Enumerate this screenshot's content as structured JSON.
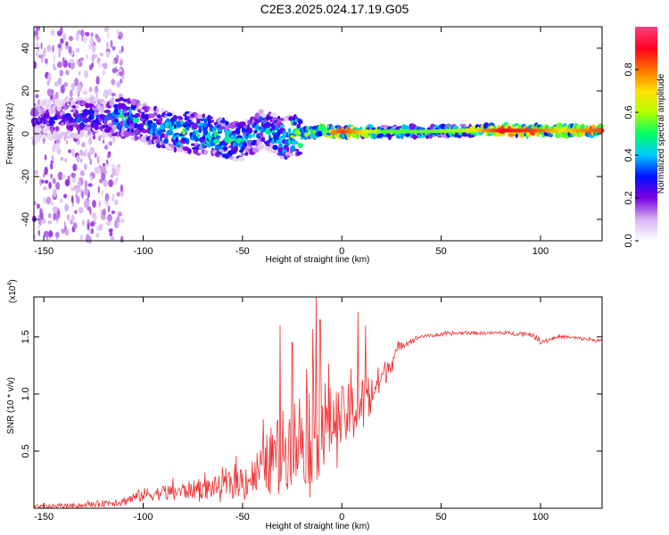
{
  "title": "C2E3.2025.024.17.19.G05",
  "spectrogram": {
    "type": "heatmap",
    "xlabel": "Height of straight line (km)",
    "ylabel": "Frequency (Hz)",
    "xlim": [
      -155,
      131
    ],
    "ylim": [
      -50,
      50
    ],
    "xticks": [
      -150,
      -100,
      -50,
      0,
      50,
      100
    ],
    "yticks": [
      -40,
      -20,
      0,
      20,
      40
    ],
    "colorbar": {
      "label": "Normalized spectral amplitude",
      "range": [
        0,
        1
      ],
      "ticks": [
        0.0,
        0.2,
        0.4,
        0.6,
        0.8
      ],
      "tick_labels": [
        "0.0",
        "0.2",
        "0.4",
        "0.6",
        "0.8"
      ],
      "colors": [
        "#ffffff",
        "#d7b3f0",
        "#7b00e0",
        "#0010ff",
        "#00c8ff",
        "#00ff64",
        "#b4ff00",
        "#ffe000",
        "#ff7000",
        "#ff0020",
        "#ff4080"
      ]
    },
    "ridge": [
      {
        "x": -155,
        "f": 6,
        "amp": 0.25
      },
      {
        "x": -140,
        "f": 7,
        "amp": 0.3
      },
      {
        "x": -130,
        "f": 8,
        "amp": 0.35
      },
      {
        "x": -120,
        "f": 7,
        "amp": 0.3
      },
      {
        "x": -110,
        "f": 8,
        "amp": 0.45
      },
      {
        "x": -100,
        "f": 5,
        "amp": 0.4
      },
      {
        "x": -90,
        "f": 2,
        "amp": 0.45
      },
      {
        "x": -80,
        "f": 1,
        "amp": 0.5
      },
      {
        "x": -70,
        "f": 0,
        "amp": 0.5
      },
      {
        "x": -60,
        "f": -2,
        "amp": 0.5
      },
      {
        "x": -50,
        "f": -4,
        "amp": 0.45
      },
      {
        "x": -40,
        "f": 3,
        "amp": 0.4
      },
      {
        "x": -30,
        "f": -2,
        "amp": 0.5
      },
      {
        "x": -20,
        "f": 0,
        "amp": 0.6
      },
      {
        "x": -10,
        "f": 1,
        "amp": 0.7
      },
      {
        "x": 0,
        "f": 1,
        "amp": 0.85
      },
      {
        "x": 10,
        "f": 1,
        "amp": 0.7
      },
      {
        "x": 20,
        "f": 1,
        "amp": 0.55
      },
      {
        "x": 40,
        "f": 1,
        "amp": 0.55
      },
      {
        "x": 60,
        "f": 1.5,
        "amp": 0.6
      },
      {
        "x": 80,
        "f": 1.5,
        "amp": 0.9
      },
      {
        "x": 95,
        "f": 1.5,
        "amp": 0.85
      },
      {
        "x": 110,
        "f": 1.5,
        "amp": 0.7
      },
      {
        "x": 131,
        "f": 1.5,
        "amp": 0.85
      }
    ]
  },
  "snr": {
    "type": "line",
    "xlabel": "Height of straight line (km)",
    "ylabel": "SNR (10 * v/v)",
    "multiplier": "(x10",
    "multiplier_exp": "4",
    "multiplier_close": ")",
    "xlim": [
      -155,
      131
    ],
    "ylim": [
      0,
      1.85
    ],
    "xticks": [
      -150,
      -100,
      -50,
      0,
      50,
      100
    ],
    "yticks": [
      0.5,
      1.0,
      1.5
    ],
    "ytick_labels": [
      "0.5",
      "1.0",
      "1.5"
    ],
    "color": "#f03030",
    "envelope": [
      {
        "x": -155,
        "base": 0.01,
        "spread": 0.03
      },
      {
        "x": -130,
        "base": 0.02,
        "spread": 0.04
      },
      {
        "x": -110,
        "base": 0.05,
        "spread": 0.08
      },
      {
        "x": -100,
        "base": 0.1,
        "spread": 0.12
      },
      {
        "x": -80,
        "base": 0.13,
        "spread": 0.15
      },
      {
        "x": -60,
        "base": 0.16,
        "spread": 0.2
      },
      {
        "x": -45,
        "base": 0.22,
        "spread": 0.35
      },
      {
        "x": -35,
        "base": 0.35,
        "spread": 0.6
      },
      {
        "x": -25,
        "base": 0.45,
        "spread": 0.8
      },
      {
        "x": -15,
        "base": 0.55,
        "spread": 1.0
      },
      {
        "x": -10,
        "base": 0.6,
        "spread": 0.9
      },
      {
        "x": -5,
        "base": 0.65,
        "spread": 0.6
      },
      {
        "x": 5,
        "base": 0.75,
        "spread": 0.55
      },
      {
        "x": 12,
        "base": 0.85,
        "spread": 0.5
      },
      {
        "x": 20,
        "base": 1.1,
        "spread": 0.25
      },
      {
        "x": 30,
        "base": 1.42,
        "spread": 0.08
      },
      {
        "x": 40,
        "base": 1.5,
        "spread": 0.03
      },
      {
        "x": 60,
        "base": 1.53,
        "spread": 0.03
      },
      {
        "x": 80,
        "base": 1.53,
        "spread": 0.03
      },
      {
        "x": 95,
        "base": 1.52,
        "spread": 0.04
      },
      {
        "x": 100,
        "base": 1.45,
        "spread": 0.04
      },
      {
        "x": 110,
        "base": 1.5,
        "spread": 0.03
      },
      {
        "x": 131,
        "base": 1.46,
        "spread": 0.03
      }
    ],
    "peaks": [
      {
        "x": -31,
        "y": 1.6
      },
      {
        "x": -25,
        "y": 1.45
      },
      {
        "x": -13,
        "y": 1.85
      },
      {
        "x": -11,
        "y": 1.65
      },
      {
        "x": 8,
        "y": 1.72
      },
      {
        "x": 12,
        "y": 1.6
      }
    ]
  }
}
